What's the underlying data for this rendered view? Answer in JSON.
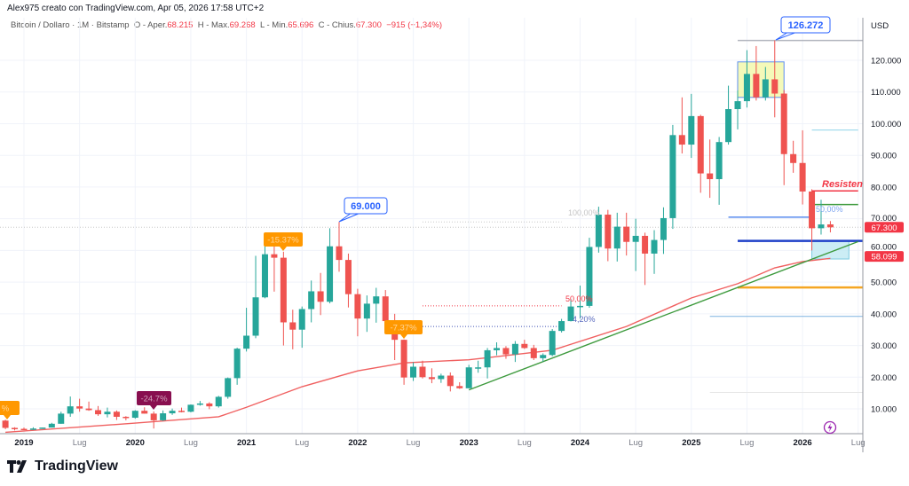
{
  "header": {
    "credit": "Alex975 creato con TradingView.com, Apr 05, 2026 17:58 UTC+2",
    "symbol": "Bitcoin / Dollaro · 1M · Bitstamp",
    "o_label": "O - Aper.",
    "o_value": "68.215",
    "h_label": "H - Max.",
    "h_value": "69.268",
    "l_label": "L - Min.",
    "l_value": "65.696",
    "c_label": "C - Chius.",
    "c_value": "67.300",
    "change": "−915 (−1,34%)"
  },
  "footer": {
    "brand": "TradingView"
  },
  "colors": {
    "up": "#26a69a",
    "down": "#ef5350",
    "ma": "#f06060",
    "trend": "#3d9a3d",
    "accent": "#2962ff",
    "orange": "#ff9800"
  },
  "chart_data": {
    "type": "candlestick",
    "currency": "USD",
    "unit_note": "prices in thousands of USD",
    "y_ticks": [
      "10.000",
      "20.000",
      "30.000",
      "40.000",
      "50.000",
      "60.000",
      "70.000",
      "80.000",
      "90.000",
      "100.000",
      "110.000",
      "120.000"
    ],
    "x_ticks": [
      "2019",
      "Lug",
      "2020",
      "Lug",
      "2021",
      "Lug",
      "2022",
      "Lug",
      "2023",
      "Lug",
      "2024",
      "Lug",
      "2025",
      "Lug",
      "2026",
      "Lug"
    ],
    "price_tags": [
      {
        "text": "67.300",
        "price": 67.3
      },
      {
        "text": "58.099",
        "price": 58.099
      }
    ],
    "candles": [
      [
        "2018-11",
        6.3,
        6.6,
        3.6,
        4.0
      ],
      [
        "2018-12",
        4.0,
        4.2,
        3.2,
        3.7
      ],
      [
        "2019-01",
        3.7,
        4.1,
        3.4,
        3.4
      ],
      [
        "2019-02",
        3.4,
        4.2,
        3.4,
        3.8
      ],
      [
        "2019-03",
        3.8,
        4.1,
        3.7,
        4.1
      ],
      [
        "2019-04",
        4.1,
        5.6,
        4.1,
        5.3
      ],
      [
        "2019-05",
        5.3,
        9.1,
        5.3,
        8.5
      ],
      [
        "2019-06",
        8.5,
        13.9,
        7.5,
        10.8
      ],
      [
        "2019-07",
        10.8,
        13.2,
        9.1,
        10.1
      ],
      [
        "2019-08",
        10.1,
        12.3,
        9.4,
        9.6
      ],
      [
        "2019-09",
        9.6,
        10.9,
        7.8,
        8.3
      ],
      [
        "2019-10",
        8.3,
        10.4,
        7.3,
        9.1
      ],
      [
        "2019-11",
        9.1,
        9.5,
        6.5,
        7.5
      ],
      [
        "2019-12",
        7.5,
        7.7,
        6.4,
        7.2
      ],
      [
        "2020-01",
        7.2,
        9.6,
        6.9,
        9.4
      ],
      [
        "2020-02",
        9.4,
        10.5,
        8.5,
        8.5
      ],
      [
        "2020-03",
        8.5,
        9.2,
        3.8,
        6.4
      ],
      [
        "2020-04",
        6.4,
        9.5,
        6.2,
        8.6
      ],
      [
        "2020-05",
        8.6,
        10.1,
        8.1,
        9.4
      ],
      [
        "2020-06",
        9.4,
        10.4,
        8.9,
        9.1
      ],
      [
        "2020-07",
        9.1,
        11.4,
        8.9,
        11.3
      ],
      [
        "2020-08",
        11.3,
        12.5,
        11.0,
        11.7
      ],
      [
        "2020-09",
        11.7,
        12.1,
        9.9,
        10.8
      ],
      [
        "2020-10",
        10.8,
        14.1,
        10.4,
        13.8
      ],
      [
        "2020-11",
        13.8,
        19.9,
        13.2,
        19.7
      ],
      [
        "2020-12",
        19.7,
        29.3,
        17.6,
        29.0
      ],
      [
        "2021-01",
        29.0,
        41.9,
        28.1,
        33.1
      ],
      [
        "2021-02",
        33.1,
        58.3,
        32.3,
        45.2
      ],
      [
        "2021-03",
        45.2,
        61.8,
        44.9,
        58.8
      ],
      [
        "2021-04",
        58.8,
        64.9,
        47.0,
        57.7
      ],
      [
        "2021-05",
        57.7,
        59.6,
        30.0,
        37.3
      ],
      [
        "2021-06",
        37.3,
        41.3,
        28.8,
        35.0
      ],
      [
        "2021-07",
        35.0,
        42.3,
        29.3,
        41.5
      ],
      [
        "2021-08",
        41.5,
        50.5,
        37.3,
        47.1
      ],
      [
        "2021-09",
        47.1,
        52.9,
        39.6,
        43.8
      ],
      [
        "2021-10",
        43.8,
        67.0,
        43.3,
        61.3
      ],
      [
        "2021-11",
        61.3,
        69.0,
        53.3,
        57.0
      ],
      [
        "2021-12",
        57.0,
        59.0,
        42.0,
        46.2
      ],
      [
        "2022-01",
        46.2,
        47.9,
        32.9,
        38.5
      ],
      [
        "2022-02",
        38.5,
        45.8,
        34.3,
        43.2
      ],
      [
        "2022-03",
        43.2,
        48.2,
        37.2,
        45.5
      ],
      [
        "2022-04",
        45.5,
        47.5,
        37.6,
        37.7
      ],
      [
        "2022-05",
        37.7,
        40.0,
        25.4,
        31.8
      ],
      [
        "2022-06",
        31.8,
        31.9,
        17.6,
        19.9
      ],
      [
        "2022-07",
        19.9,
        24.7,
        18.8,
        23.3
      ],
      [
        "2022-08",
        23.3,
        25.2,
        19.6,
        20.0
      ],
      [
        "2022-09",
        20.0,
        22.8,
        18.1,
        19.4
      ],
      [
        "2022-10",
        19.4,
        21.1,
        18.2,
        20.5
      ],
      [
        "2022-11",
        20.5,
        21.5,
        15.5,
        17.2
      ],
      [
        "2022-12",
        17.2,
        18.4,
        16.3,
        16.5
      ],
      [
        "2023-01",
        16.5,
        23.9,
        16.5,
        23.1
      ],
      [
        "2023-02",
        23.1,
        25.2,
        21.4,
        23.1
      ],
      [
        "2023-03",
        23.1,
        29.2,
        19.6,
        28.5
      ],
      [
        "2023-04",
        28.5,
        31.0,
        26.9,
        29.2
      ],
      [
        "2023-05",
        29.2,
        29.8,
        25.8,
        27.2
      ],
      [
        "2023-06",
        27.2,
        31.4,
        24.8,
        30.5
      ],
      [
        "2023-07",
        30.5,
        31.8,
        28.9,
        29.2
      ],
      [
        "2023-08",
        29.2,
        30.2,
        25.4,
        26.0
      ],
      [
        "2023-09",
        26.0,
        27.5,
        24.9,
        27.0
      ],
      [
        "2023-10",
        27.0,
        35.2,
        26.6,
        34.6
      ],
      [
        "2023-11",
        34.6,
        38.4,
        34.1,
        37.7
      ],
      [
        "2023-12",
        37.7,
        44.7,
        37.6,
        42.3
      ],
      [
        "2024-01",
        42.3,
        48.9,
        38.5,
        42.5
      ],
      [
        "2024-02",
        42.5,
        64.0,
        41.9,
        61.1
      ],
      [
        "2024-03",
        61.1,
        73.8,
        59.3,
        71.3
      ],
      [
        "2024-04",
        71.3,
        72.8,
        56.6,
        60.6
      ],
      [
        "2024-05",
        60.6,
        71.9,
        56.5,
        67.5
      ],
      [
        "2024-06",
        67.5,
        71.9,
        58.4,
        62.7
      ],
      [
        "2024-07",
        62.7,
        70.0,
        53.5,
        64.6
      ],
      [
        "2024-08",
        64.6,
        65.6,
        49.1,
        59.0
      ],
      [
        "2024-09",
        59.0,
        66.4,
        52.6,
        63.3
      ],
      [
        "2024-10",
        63.3,
        73.6,
        58.9,
        70.2
      ],
      [
        "2024-11",
        70.2,
        99.6,
        66.8,
        96.4
      ],
      [
        "2024-12",
        96.4,
        108.3,
        90.6,
        93.4
      ],
      [
        "2025-01",
        93.4,
        109.4,
        89.2,
        102.4
      ],
      [
        "2025-02",
        102.4,
        102.8,
        78.2,
        84.3
      ],
      [
        "2025-03",
        84.3,
        95.0,
        76.6,
        82.5
      ],
      [
        "2025-04",
        82.5,
        95.8,
        74.4,
        94.2
      ],
      [
        "2025-05",
        94.2,
        112.0,
        93.4,
        104.6
      ],
      [
        "2025-06",
        104.6,
        110.5,
        98.2,
        107.1
      ],
      [
        "2025-07",
        107.1,
        123.2,
        105.1,
        115.7
      ],
      [
        "2025-08",
        115.7,
        124.5,
        107.3,
        108.3
      ],
      [
        "2025-09",
        108.3,
        117.9,
        107.3,
        114.0
      ],
      [
        "2025-10",
        114.0,
        126.272,
        102.0,
        109.5
      ],
      [
        "2025-11",
        109.5,
        110.6,
        80.6,
        90.4
      ],
      [
        "2025-12",
        90.4,
        94.6,
        84.5,
        87.6
      ],
      [
        "2026-01",
        87.6,
        97.9,
        74.5,
        78.6
      ],
      [
        "2026-02",
        78.6,
        79.3,
        60.0,
        67.0
      ],
      [
        "2026-03",
        67.0,
        76.0,
        65.0,
        68.2
      ],
      [
        "2026-04",
        68.215,
        69.268,
        65.696,
        67.3
      ]
    ],
    "ma_line": [
      [
        "2018-11",
        2.6
      ],
      [
        "2020-01",
        5.5
      ],
      [
        "2020-10",
        7.5
      ],
      [
        "2021-01",
        10.5
      ],
      [
        "2021-07",
        17
      ],
      [
        "2022-01",
        22
      ],
      [
        "2022-06",
        24.5
      ],
      [
        "2023-01",
        25.5
      ],
      [
        "2023-10",
        28.5
      ],
      [
        "2024-06",
        36
      ],
      [
        "2025-01",
        45
      ],
      [
        "2025-06",
        49.5
      ],
      [
        "2025-10",
        54.5
      ],
      [
        "2026-01",
        56.5
      ],
      [
        "2026-04",
        57.5
      ]
    ],
    "trendline": [
      [
        "2023-01",
        16.0
      ],
      [
        "2026-07",
        62.8
      ]
    ],
    "drawings": {
      "hlines": [
        {
          "price": 126.272,
          "from": "2025-06",
          "to": "edge",
          "color": "#b2b5be",
          "width": 1.5
        },
        {
          "price": 70.5,
          "from": "2025-05",
          "to": "2026-02",
          "color": "#5b8def",
          "width": 1.5
        },
        {
          "price": 78.8,
          "from": "2026-02",
          "to": "2026-07",
          "color": "#f23645",
          "width": 1.5
        },
        {
          "price": 74.5,
          "from": "2026-02",
          "to": "2026-07",
          "color": "#3d9a3d",
          "width": 1.5
        },
        {
          "price": 98,
          "from": "2026-02",
          "to": "2026-07",
          "color": "#8fd3e8",
          "width": 1
        },
        {
          "price": 63,
          "from": "2025-06",
          "to": "edge",
          "color": "#1e40c8",
          "width": 2.5
        },
        {
          "price": 48.3,
          "from": "2025-06",
          "to": "edge",
          "color": "#f5a623",
          "width": 2.5
        },
        {
          "price": 39.2,
          "from": "2025-03",
          "to": "edge",
          "color": "#7fb3e0",
          "width": 1
        },
        {
          "price": 15.2,
          "from": "2025-03",
          "to": "edge",
          "color": "#e6e6e6",
          "width": 1
        },
        {
          "price": 67.3,
          "from": "start",
          "to": "edge",
          "color": "#c8c8c8",
          "width": 1,
          "dash": "1 2"
        },
        {
          "price": 69.0,
          "from": "2022-08",
          "to": "2023-11",
          "color": "#c8c8c8",
          "width": 1,
          "dash": "1 2"
        },
        {
          "price": 42.5,
          "from": "2022-08",
          "to": "2023-11",
          "color": "#f23645",
          "width": 1,
          "dash": "1 2"
        },
        {
          "price": 36.0,
          "from": "2022-08",
          "to": "2023-11",
          "color": "#3f51b5",
          "width": 1,
          "dash": "1 2"
        }
      ],
      "boxes": [
        {
          "from": "2025-06",
          "to": "2025-11",
          "low": 108.3,
          "high": 119.5,
          "fill": "#f1f7a8",
          "stroke": "#5b8def"
        },
        {
          "from": "2026-02",
          "to": "2026-06",
          "low": 57.3,
          "high": 63,
          "fill": "#bfe8f3",
          "stroke": "#7ccbe0"
        }
      ]
    },
    "annotations": {
      "ath_callout": "126.272",
      "high_2021_callout": "69.000",
      "drop_2021": "-15.37%",
      "drop_2022": "-7.37%",
      "drop_2020": "-24.7%",
      "left_edge_label": "%",
      "fib_100": "100,00%",
      "fib_50": "50,00%",
      "fib_low": "4,20%",
      "fib_50_recent": "50,00%",
      "resistance": "Resisten"
    }
  }
}
